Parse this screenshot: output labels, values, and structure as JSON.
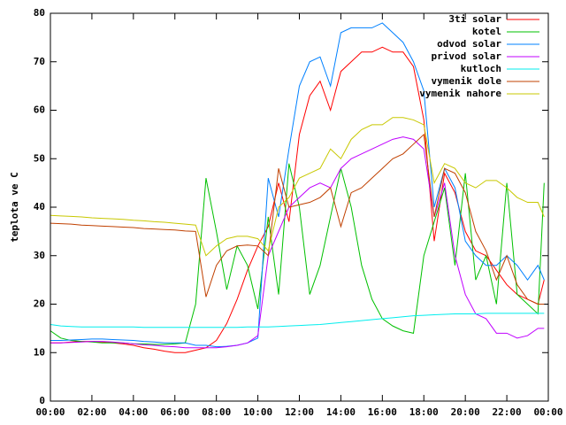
{
  "chart_data": {
    "type": "line",
    "ylabel": "teplota ve C",
    "legend": "top-right",
    "x": [
      0,
      0.5,
      1,
      1.5,
      2,
      2.5,
      3,
      3.5,
      4,
      4.5,
      5,
      5.5,
      6,
      6.5,
      7,
      7.5,
      8,
      8.5,
      9,
      9.5,
      10,
      10.5,
      11,
      11.5,
      12,
      12.5,
      13,
      13.5,
      14,
      14.5,
      15,
      15.5,
      16,
      16.5,
      17,
      17.5,
      18,
      18.5,
      19,
      19.5,
      20,
      20.5,
      21,
      21.5,
      22,
      22.5,
      23,
      23.5,
      23.8
    ],
    "xlim": [
      0,
      24
    ],
    "xticks": [
      {
        "value": 0,
        "label": "00:00"
      },
      {
        "value": 2,
        "label": "02:00"
      },
      {
        "value": 4,
        "label": "04:00"
      },
      {
        "value": 6,
        "label": "06:00"
      },
      {
        "value": 8,
        "label": "08:00"
      },
      {
        "value": 10,
        "label": "10:00"
      },
      {
        "value": 12,
        "label": "12:00"
      },
      {
        "value": 14,
        "label": "14:00"
      },
      {
        "value": 16,
        "label": "16:00"
      },
      {
        "value": 18,
        "label": "18:00"
      },
      {
        "value": 20,
        "label": "20:00"
      },
      {
        "value": 22,
        "label": "22:00"
      },
      {
        "value": 24,
        "label": "00:00"
      }
    ],
    "ylim": [
      0,
      80
    ],
    "yticks": [
      0,
      10,
      20,
      30,
      40,
      50,
      60,
      70,
      80
    ],
    "series": [
      {
        "name": "3ti solar",
        "color": "#ff0000",
        "values": [
          12,
          12,
          12.2,
          12.3,
          12.3,
          12.2,
          12,
          11.8,
          11.5,
          11,
          10.7,
          10.3,
          10,
          10,
          10.5,
          11,
          12.5,
          16,
          21,
          27,
          32,
          36,
          45,
          37,
          55,
          63,
          66,
          60,
          68,
          70,
          72,
          72,
          73,
          72,
          72,
          69,
          58,
          33,
          47,
          43,
          35,
          31,
          30,
          27,
          24,
          22,
          21,
          20,
          25
        ]
      },
      {
        "name": "kotel",
        "color": "#00c000",
        "values": [
          14.5,
          13,
          12.5,
          12.3,
          12.2,
          12,
          12,
          12,
          11.8,
          11.8,
          11.7,
          11.7,
          11.8,
          12,
          20,
          46,
          35,
          23,
          32,
          28,
          19,
          38,
          22,
          49,
          40,
          22,
          28,
          38,
          48,
          40,
          28,
          21,
          17,
          15.5,
          14.5,
          14,
          30,
          37,
          44,
          28,
          47,
          25,
          30,
          20,
          45,
          22,
          20,
          18,
          45
        ]
      },
      {
        "name": "odvod solar",
        "color": "#0080ff",
        "values": [
          12.5,
          12.5,
          12.6,
          12.7,
          12.8,
          12.8,
          12.7,
          12.6,
          12.5,
          12.3,
          12.2,
          12,
          12,
          12,
          11.5,
          11.5,
          11.2,
          11.3,
          11.5,
          12,
          13,
          46,
          38,
          52,
          65,
          70,
          71,
          65,
          76,
          77,
          77,
          77,
          78,
          76,
          74,
          70,
          64,
          40,
          48,
          44,
          33,
          30,
          28,
          28,
          30,
          28,
          25,
          28,
          25
        ]
      },
      {
        "name": "privod solar",
        "color": "#c000ff",
        "values": [
          12,
          12,
          12.1,
          12.2,
          12.3,
          12.3,
          12.2,
          12,
          11.8,
          11.6,
          11.5,
          11.3,
          11.2,
          11,
          11,
          11,
          11,
          11.2,
          11.5,
          12,
          13.5,
          30,
          35,
          40,
          42,
          44,
          45,
          44,
          48,
          50,
          51,
          52,
          53,
          54,
          54.5,
          54,
          52,
          38,
          45,
          30,
          22,
          18,
          17,
          14,
          14,
          13,
          13.5,
          15,
          15
        ]
      },
      {
        "name": "kutloch",
        "color": "#00eeee",
        "values": [
          15.8,
          15.5,
          15.4,
          15.3,
          15.3,
          15.3,
          15.3,
          15.3,
          15.3,
          15.2,
          15.2,
          15.2,
          15.2,
          15.2,
          15.2,
          15.2,
          15.2,
          15.2,
          15.2,
          15.3,
          15.3,
          15.3,
          15.4,
          15.5,
          15.6,
          15.7,
          15.8,
          16,
          16.2,
          16.4,
          16.6,
          16.8,
          17,
          17.2,
          17.4,
          17.6,
          17.7,
          17.8,
          17.9,
          18,
          18,
          18,
          18.1,
          18.1,
          18.1,
          18.1,
          18.1,
          18.1,
          18.1
        ]
      },
      {
        "name": "vymenik dole",
        "color": "#c04000",
        "values": [
          36.7,
          36.6,
          36.5,
          36.3,
          36.2,
          36.1,
          36,
          35.9,
          35.8,
          35.6,
          35.5,
          35.4,
          35.3,
          35.1,
          35,
          21.5,
          28,
          31,
          32,
          32.2,
          32,
          30,
          48,
          40,
          40.5,
          41,
          42,
          44,
          36,
          43,
          44,
          46,
          48,
          50,
          51,
          53,
          55,
          38,
          48,
          47,
          43,
          35,
          31,
          25,
          30,
          24,
          21,
          20,
          20
        ]
      },
      {
        "name": "vymenik nahore",
        "color": "#c8c800",
        "values": [
          38.3,
          38.2,
          38.1,
          38,
          37.8,
          37.7,
          37.6,
          37.5,
          37.3,
          37.2,
          37,
          36.9,
          36.7,
          36.5,
          36.3,
          30,
          32,
          33.5,
          34,
          34,
          33.5,
          31,
          40,
          42,
          46,
          47,
          48,
          52,
          50,
          54,
          56,
          57,
          57,
          58.5,
          58.5,
          58,
          57,
          45,
          49,
          48,
          45,
          44,
          45.5,
          45.5,
          44,
          42,
          41,
          41,
          38
        ]
      }
    ]
  }
}
